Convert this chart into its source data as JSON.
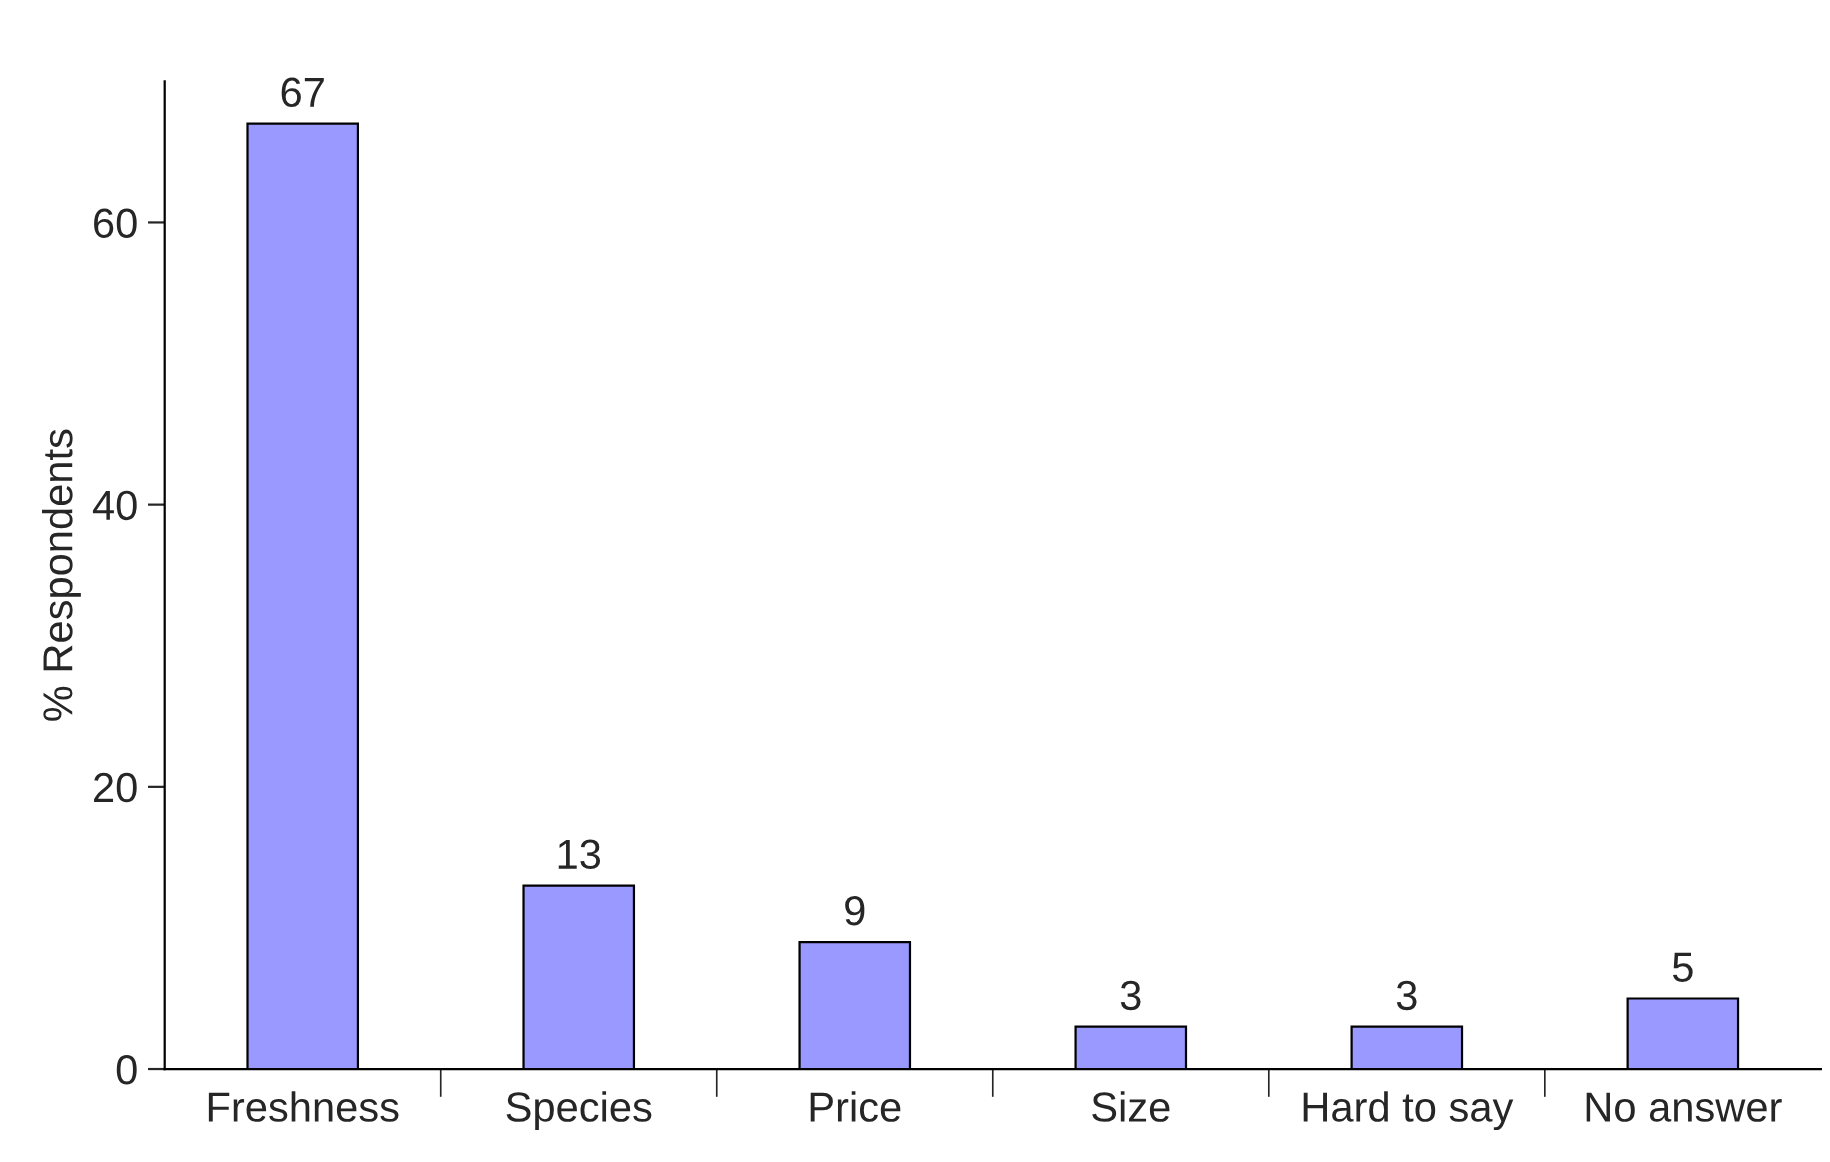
{
  "chart_data": {
    "type": "bar",
    "ylabel": "% Respondents",
    "categories": [
      "Freshness",
      "Species",
      "Price",
      "Size",
      "Hard to say",
      "No answer"
    ],
    "values": [
      67,
      13,
      9,
      3,
      3,
      5
    ],
    "color": "#9999ff",
    "ylim": [
      0,
      70
    ],
    "yticks": [
      0,
      20,
      40,
      60
    ],
    "grid": false,
    "data_labels": true
  }
}
